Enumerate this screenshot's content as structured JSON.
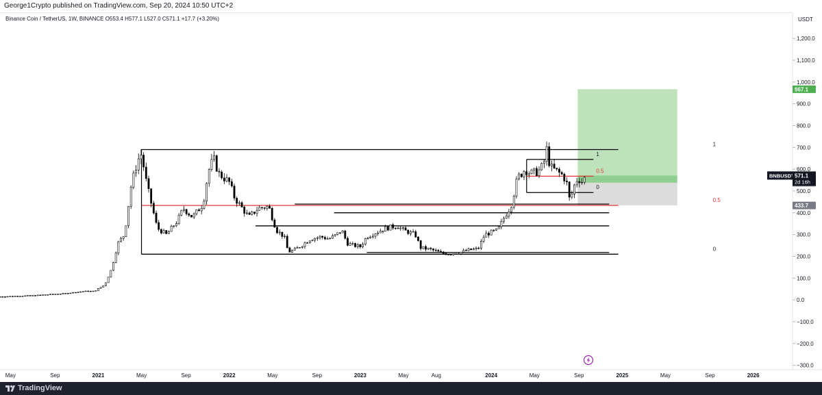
{
  "header": {
    "published": "George1Crypto published on TradingView.com, Sep 20, 2024 10:50 UTC+2"
  },
  "footer": {
    "brand": "TradingView",
    "brand_icon": "tradingview-logo-icon"
  },
  "chart_data": {
    "type": "candlestick",
    "legend": "Binance Coin / TetherUS, 1W, BINANCE  O553.4  H577.1  L527.0  C571.1  +17.7 (+3.20%)",
    "y_axis_unit": "USDT",
    "ylim": [
      -320,
      1320
    ],
    "x_range": [
      2020.25,
      2026.3
    ],
    "y_ticks": [
      {
        "v": 1200,
        "label": "1,200.0"
      },
      {
        "v": 1100,
        "label": "1,100.0"
      },
      {
        "v": 1000,
        "label": "1,000.0"
      },
      {
        "v": 900,
        "label": "900.0"
      },
      {
        "v": 800,
        "label": "800.0"
      },
      {
        "v": 700,
        "label": "700.0"
      },
      {
        "v": 600,
        "label": "600.0"
      },
      {
        "v": 500,
        "label": "500.0"
      },
      {
        "v": 400,
        "label": "400.0"
      },
      {
        "v": 300,
        "label": "300.0"
      },
      {
        "v": 200,
        "label": "200.0"
      },
      {
        "v": 100,
        "label": "100.0"
      },
      {
        "v": 0,
        "label": "0.0"
      },
      {
        "v": -100,
        "label": "−100.0"
      },
      {
        "v": -200,
        "label": "−200.0"
      },
      {
        "v": -300,
        "label": "−300.0"
      }
    ],
    "x_ticks": [
      {
        "t": 2020.33,
        "label": "May"
      },
      {
        "t": 2020.67,
        "label": "Sep"
      },
      {
        "t": 2021.0,
        "label": "2021",
        "bold": true
      },
      {
        "t": 2021.33,
        "label": "May"
      },
      {
        "t": 2021.67,
        "label": "Sep"
      },
      {
        "t": 2022.0,
        "label": "2022",
        "bold": true
      },
      {
        "t": 2022.33,
        "label": "May"
      },
      {
        "t": 2022.67,
        "label": "Sep"
      },
      {
        "t": 2023.0,
        "label": "2023",
        "bold": true
      },
      {
        "t": 2023.33,
        "label": "May"
      },
      {
        "t": 2023.58,
        "label": "Aug"
      },
      {
        "t": 2024.0,
        "label": "2024",
        "bold": true
      },
      {
        "t": 2024.33,
        "label": "May"
      },
      {
        "t": 2024.67,
        "label": "Sep"
      },
      {
        "t": 2025.0,
        "label": "2025",
        "bold": true
      },
      {
        "t": 2025.33,
        "label": "May"
      },
      {
        "t": 2025.67,
        "label": "Sep"
      },
      {
        "t": 2026.0,
        "label": "2026",
        "bold": true
      }
    ],
    "price_path": [
      [
        2020.25,
        15
      ],
      [
        2020.5,
        20
      ],
      [
        2020.75,
        30
      ],
      [
        2020.9,
        40
      ],
      [
        2020.97,
        40
      ],
      [
        2021.05,
        70
      ],
      [
        2021.1,
        140
      ],
      [
        2021.15,
        260
      ],
      [
        2021.2,
        300
      ],
      [
        2021.25,
        520
      ],
      [
        2021.3,
        640
      ],
      [
        2021.33,
        670
      ],
      [
        2021.37,
        530
      ],
      [
        2021.45,
        330
      ],
      [
        2021.52,
        300
      ],
      [
        2021.6,
        360
      ],
      [
        2021.65,
        420
      ],
      [
        2021.72,
        380
      ],
      [
        2021.8,
        440
      ],
      [
        2021.84,
        590
      ],
      [
        2021.88,
        650
      ],
      [
        2021.92,
        580
      ],
      [
        2021.96,
        560
      ],
      [
        2022.0,
        540
      ],
      [
        2022.04,
        470
      ],
      [
        2022.1,
        420
      ],
      [
        2022.15,
        380
      ],
      [
        2022.22,
        420
      ],
      [
        2022.3,
        430
      ],
      [
        2022.36,
        320
      ],
      [
        2022.42,
        290
      ],
      [
        2022.45,
        220
      ],
      [
        2022.5,
        230
      ],
      [
        2022.55,
        250
      ],
      [
        2022.62,
        280
      ],
      [
        2022.7,
        290
      ],
      [
        2022.76,
        280
      ],
      [
        2022.82,
        300
      ],
      [
        2022.86,
        320
      ],
      [
        2022.9,
        260
      ],
      [
        2022.95,
        250
      ],
      [
        2023.0,
        245
      ],
      [
        2023.05,
        290
      ],
      [
        2023.12,
        310
      ],
      [
        2023.2,
        330
      ],
      [
        2023.28,
        340
      ],
      [
        2023.33,
        320
      ],
      [
        2023.42,
        300
      ],
      [
        2023.46,
        240
      ],
      [
        2023.55,
        230
      ],
      [
        2023.62,
        215
      ],
      [
        2023.68,
        212
      ],
      [
        2023.76,
        218
      ],
      [
        2023.82,
        228
      ],
      [
        2023.9,
        235
      ],
      [
        2023.95,
        300
      ],
      [
        2024.0,
        310
      ],
      [
        2024.05,
        320
      ],
      [
        2024.1,
        380
      ],
      [
        2024.15,
        430
      ],
      [
        2024.2,
        560
      ],
      [
        2024.26,
        600
      ],
      [
        2024.3,
        580
      ],
      [
        2024.36,
        590
      ],
      [
        2024.4,
        620
      ],
      [
        2024.42,
        700
      ],
      [
        2024.45,
        610
      ],
      [
        2024.5,
        590
      ],
      [
        2024.55,
        570
      ],
      [
        2024.58,
        530
      ],
      [
        2024.6,
        450
      ],
      [
        2024.63,
        520
      ],
      [
        2024.66,
        560
      ],
      [
        2024.7,
        540
      ],
      [
        2024.72,
        571
      ]
    ],
    "horizontal_levels": [
      {
        "t1": 2021.33,
        "t2": 2024.97,
        "v": 690,
        "color": "#000000",
        "label": "1"
      },
      {
        "t1": 2021.33,
        "t2": 2024.97,
        "v": 433.7,
        "color": "#e53935",
        "label": "0.5"
      },
      {
        "t1": 2021.33,
        "t2": 2024.97,
        "v": 210,
        "color": "#000000",
        "label": "0"
      },
      {
        "t1": 2022.2,
        "t2": 2024.9,
        "v": 340,
        "color": "#000000"
      },
      {
        "t1": 2022.5,
        "t2": 2024.9,
        "v": 440,
        "color": "#000000"
      },
      {
        "t1": 2022.8,
        "t2": 2024.9,
        "v": 400,
        "color": "#000000"
      },
      {
        "t1": 2023.05,
        "t2": 2024.9,
        "v": 218,
        "color": "#000000"
      },
      {
        "t1": 2024.27,
        "t2": 2024.78,
        "v": 645,
        "color": "#000000",
        "label": "1"
      },
      {
        "t1": 2024.27,
        "t2": 2024.78,
        "v": 568,
        "color": "#e53935",
        "label": "0.5"
      },
      {
        "t1": 2024.27,
        "t2": 2024.78,
        "v": 493,
        "color": "#000000",
        "label": "0"
      }
    ],
    "position_tool": {
      "entry": 538.0,
      "target": 967.1,
      "stop": 433.7,
      "t1": 2024.66,
      "t2": 2025.42,
      "target_color": "#b7dfb4",
      "stop_color": "#dcdcdc"
    },
    "price_labels": {
      "symbol": "BNBUSDT",
      "last": "571.1",
      "countdown": "2d 16h",
      "entry": "538.0",
      "target": "967.1",
      "stop": "433.7"
    },
    "colors": {
      "up": "#000000",
      "down": "#000000",
      "level_red": "#e53935",
      "target_tag": "#4caf50",
      "stop_tag": "#787b86",
      "last_tag": "#131722"
    }
  }
}
